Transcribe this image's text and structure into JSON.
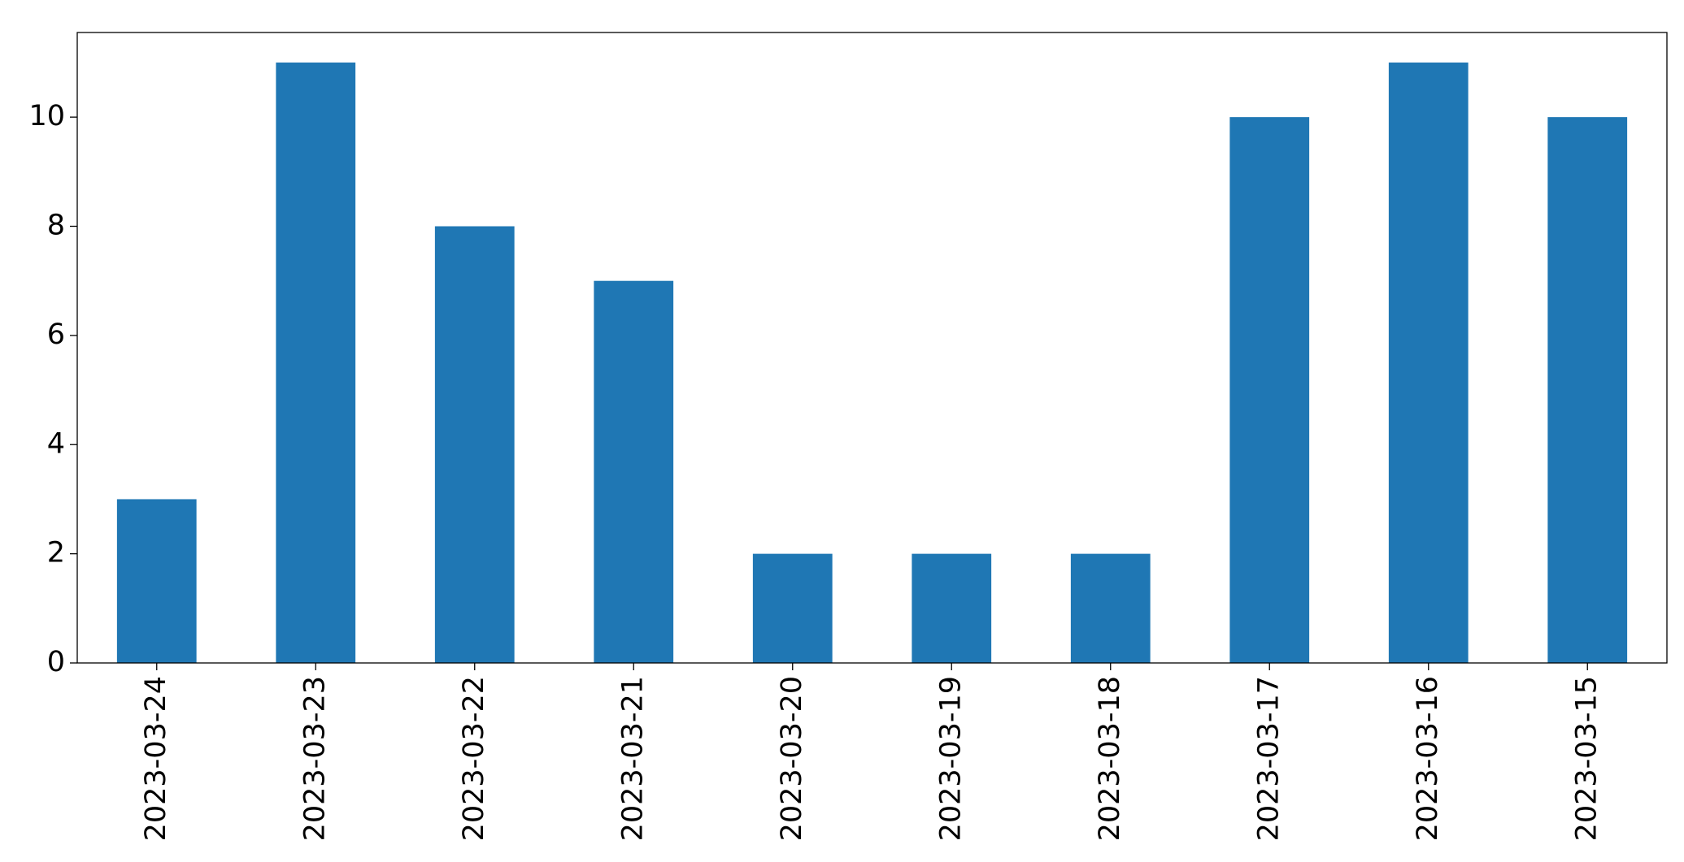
{
  "chart_data": {
    "type": "bar",
    "categories": [
      "2023-03-24",
      "2023-03-23",
      "2023-03-22",
      "2023-03-21",
      "2023-03-20",
      "2023-03-19",
      "2023-03-18",
      "2023-03-17",
      "2023-03-16",
      "2023-03-15"
    ],
    "values": [
      3,
      11,
      8,
      7,
      2,
      2,
      2,
      10,
      11,
      10
    ],
    "color": "#1f77b4",
    "ylim": [
      0,
      11.55
    ],
    "yticks": [
      0,
      2,
      4,
      6,
      8,
      10
    ],
    "grid": false
  }
}
